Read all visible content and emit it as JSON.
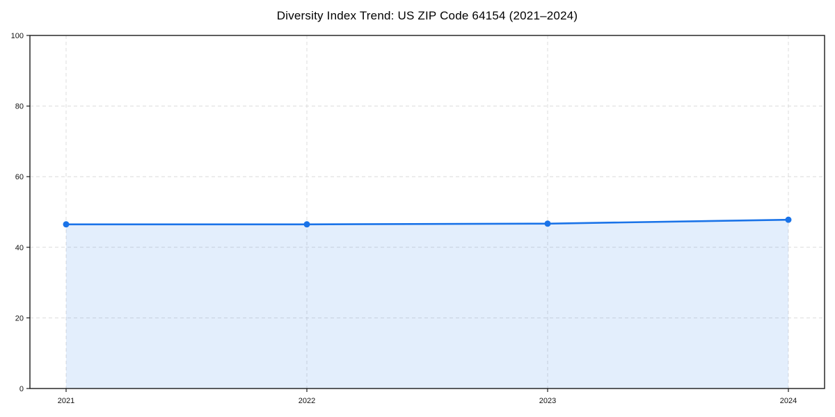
{
  "chart_data": {
    "type": "area",
    "title": "Diversity Index Trend: US ZIP Code 64154 (2021–2024)",
    "x": [
      "2021",
      "2022",
      "2023",
      "2024"
    ],
    "values": [
      46.5,
      46.5,
      46.7,
      47.8
    ],
    "xlabel": "",
    "ylabel": "",
    "ylim": [
      0,
      100
    ],
    "yticks": [
      0,
      20,
      40,
      60,
      80,
      100
    ],
    "grid": "dashed",
    "legend": "none",
    "colors": {
      "line": "#1a73e8",
      "marker": "#1a73e8",
      "fill": "rgba(26,115,232,0.12)",
      "grid": "#dcdcdc",
      "axis": "#1a1a1a",
      "tick_text": "#111111",
      "background": "#ffffff"
    }
  }
}
